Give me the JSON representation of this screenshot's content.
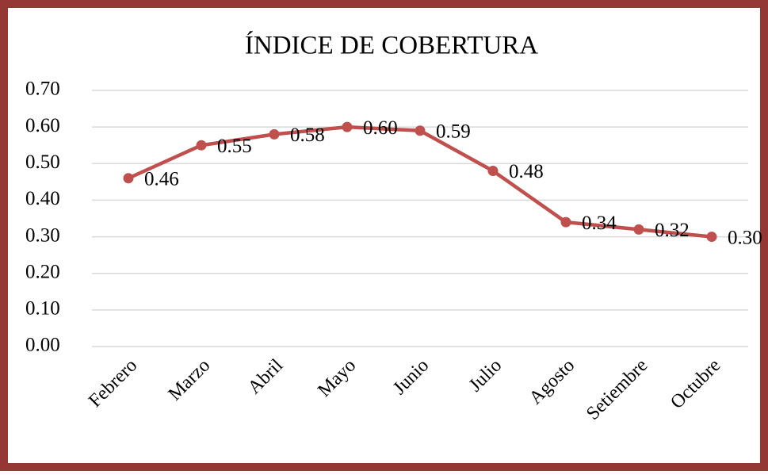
{
  "chart_data": {
    "type": "line",
    "title": "ÍNDICE DE COBERTURA",
    "categories": [
      "Febrero",
      "Marzo",
      "Abril",
      "Mayo",
      "Junio",
      "Julio",
      "Agosto",
      "Setiembre",
      "Octubre"
    ],
    "series": [
      {
        "name": "Índice de cobertura",
        "color": "#c0504d",
        "values": [
          0.46,
          0.55,
          0.58,
          0.6,
          0.59,
          0.48,
          0.34,
          0.32,
          0.3
        ],
        "value_labels": [
          "0.46",
          "0.55",
          "0.58",
          "0.60",
          "0.59",
          "0.48",
          "0.34",
          "0.32",
          "0.30"
        ]
      }
    ],
    "ylim": [
      0,
      0.7
    ],
    "yticks": [
      {
        "value": 0,
        "label": "0.00"
      },
      {
        "value": 0.1,
        "label": "0.10"
      },
      {
        "value": 0.2,
        "label": "0.20"
      },
      {
        "value": 0.3,
        "label": "0.30"
      },
      {
        "value": 0.4,
        "label": "0.40"
      },
      {
        "value": 0.5,
        "label": "0.50"
      },
      {
        "value": 0.6,
        "label": "0.60"
      },
      {
        "value": 0.7,
        "label": "0.70"
      }
    ],
    "grid": true,
    "frame_color": "#953735"
  }
}
